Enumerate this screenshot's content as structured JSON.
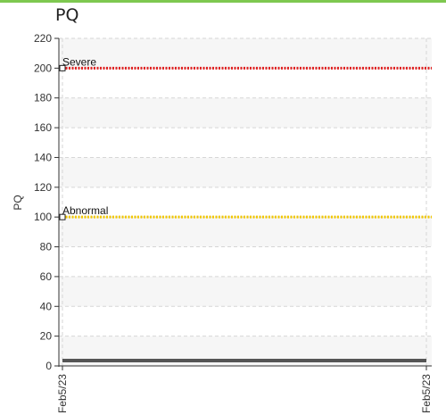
{
  "panel": {
    "title": "PQ"
  },
  "colors": {
    "accent_rule": "#7ec850",
    "severe": "#e02020",
    "abnormal": "#f2c800",
    "baseline": "#555555"
  },
  "chart_data": {
    "type": "line",
    "title": "PQ",
    "ylabel": "PQ",
    "xlabel": "",
    "ylim": [
      0,
      220
    ],
    "yticks": [
      0,
      20,
      40,
      60,
      80,
      100,
      120,
      140,
      160,
      180,
      200,
      220
    ],
    "xticks": [
      "Feb5/23",
      "Feb5/23"
    ],
    "grid": true,
    "thresholds": [
      {
        "label": "Severe",
        "value": 200,
        "color": "#e02020",
        "style": "dotted"
      },
      {
        "label": "Abnormal",
        "value": 100,
        "color": "#f2c800",
        "style": "dotted"
      }
    ],
    "series": [
      {
        "values": [
          0,
          0
        ],
        "color": "#555555"
      }
    ]
  }
}
